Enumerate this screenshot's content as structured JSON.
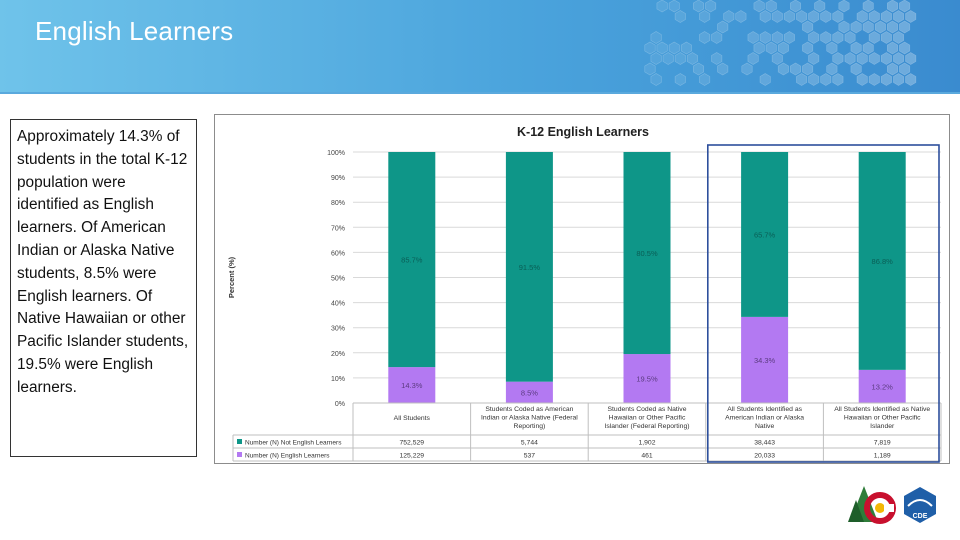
{
  "slide": {
    "title": "English Learners",
    "body_text": "Approximately 14.3% of students in the total K-12 population were identified as English learners. Of American Indian or Alaska Native students, 8.5% were English learners. Of Native Hawaiian or other Pacific Islander students, 19.5% were English learners."
  },
  "colors": {
    "not_el": "#0e9688",
    "el": "#b379f2",
    "highlight": "#2d4f9c"
  },
  "logos": {
    "cde_label": "CDE"
  },
  "chart_data": {
    "type": "bar",
    "stacked": true,
    "title": "K-12 English Learners",
    "ylabel": "Percent (%)",
    "xlabel": "",
    "ylim": [
      0,
      100
    ],
    "yticks": [
      "0%",
      "10%",
      "20%",
      "30%",
      "40%",
      "50%",
      "60%",
      "70%",
      "80%",
      "90%",
      "100%"
    ],
    "categories": [
      "All Students",
      "Students Coded as American Indian or Alaska Native (Federal Reporting)",
      "Students Coded as Native Hawaiian or Other Pacific Islander (Federal Reporting)",
      "All Students Identified as American Indian or Alaska Native",
      "All Students Identified as Native Hawaiian or Other Pacific Islander"
    ],
    "category_lines": [
      [
        "All Students"
      ],
      [
        "Students Coded as American",
        "Indian or Alaska Native (Federal",
        "Reporting)"
      ],
      [
        "Students Coded as Native",
        "Hawaiian or Other Pacific",
        "Islander (Federal Reporting)"
      ],
      [
        "All Students Identified as",
        "American Indian or Alaska",
        "Native"
      ],
      [
        "All Students Identified as Native",
        "Hawaiian or Other Pacific",
        "Islander"
      ]
    ],
    "highlighted_categories": [
      3,
      4
    ],
    "series": [
      {
        "name": "Number (N) Not English Learners",
        "color": "#0e9688",
        "values": [
          85.7,
          91.5,
          80.5,
          65.7,
          86.8
        ],
        "labels": [
          "85.7%",
          "91.5%",
          "80.5%",
          "65.7%",
          "86.8%"
        ],
        "counts": [
          "752,529",
          "5,744",
          "1,902",
          "38,443",
          "7,819"
        ]
      },
      {
        "name": "Number (N) English Learners",
        "color": "#b379f2",
        "values": [
          14.3,
          8.5,
          19.5,
          34.3,
          13.2
        ],
        "labels": [
          "14.3%",
          "8.5%",
          "19.5%",
          "34.3%",
          "13.2%"
        ],
        "counts": [
          "125,229",
          "537",
          "461",
          "20,033",
          "1,189"
        ]
      }
    ]
  }
}
